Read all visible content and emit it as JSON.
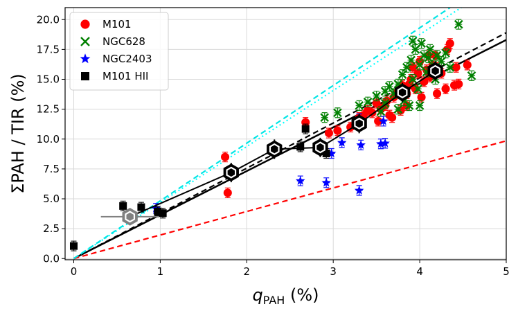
{
  "chart_data": {
    "type": "scatter",
    "xlabel": "q",
    "xlabel_sub": "PAH",
    "xlabel_unit": "(%)",
    "ylabel": "ΣPAH / TIR (%)",
    "xlim": [
      -0.1,
      5.0
    ],
    "ylim": [
      -0.1,
      21.0
    ],
    "xticks": [
      "0",
      "1",
      "2",
      "3",
      "4",
      "5"
    ],
    "yticks": [
      "0.0",
      "2.5",
      "5.0",
      "7.5",
      "10.0",
      "12.5",
      "15.0",
      "17.5",
      "20.0"
    ],
    "grid": true,
    "legend_position": "top-left",
    "colors": {
      "m101": "#ff0000",
      "ngc628": "#008000",
      "ngc2403": "#0000ff",
      "hii": "#000000",
      "cyan": "#00e5e5"
    },
    "series": [
      {
        "name": "M101",
        "marker": "circle",
        "color": "#ff0000",
        "points": [
          [
            1.78,
            5.5
          ],
          [
            1.75,
            8.5
          ],
          [
            2.68,
            11.4
          ],
          [
            2.95,
            10.5
          ],
          [
            3.05,
            10.7
          ],
          [
            3.2,
            11.0
          ],
          [
            3.3,
            11.8
          ],
          [
            3.35,
            12.0
          ],
          [
            3.4,
            12.4
          ],
          [
            3.45,
            12.2
          ],
          [
            3.5,
            13.0
          ],
          [
            3.52,
            11.5
          ],
          [
            3.55,
            12.5
          ],
          [
            3.6,
            12.8
          ],
          [
            3.62,
            13.2
          ],
          [
            3.65,
            12.0
          ],
          [
            3.7,
            13.5
          ],
          [
            3.75,
            14.0
          ],
          [
            3.78,
            12.4
          ],
          [
            3.8,
            14.5
          ],
          [
            3.85,
            13.8
          ],
          [
            3.88,
            14.6
          ],
          [
            3.9,
            15.0
          ],
          [
            3.92,
            16.0
          ],
          [
            3.95,
            14.2
          ],
          [
            3.98,
            15.5
          ],
          [
            4.0,
            16.5
          ],
          [
            4.05,
            14.8
          ],
          [
            4.08,
            15.8
          ],
          [
            4.1,
            17.0
          ],
          [
            4.12,
            15.2
          ],
          [
            4.15,
            16.2
          ],
          [
            4.18,
            17.0
          ],
          [
            4.2,
            16.0
          ],
          [
            4.25,
            15.5
          ],
          [
            4.3,
            14.2
          ],
          [
            4.32,
            17.5
          ],
          [
            4.35,
            18.0
          ],
          [
            4.4,
            14.5
          ],
          [
            4.45,
            14.6
          ],
          [
            4.55,
            16.2
          ],
          [
            4.42,
            16.0
          ],
          [
            3.85,
            12.8
          ],
          [
            4.02,
            13.5
          ],
          [
            4.2,
            13.8
          ],
          [
            3.68,
            11.8
          ]
        ]
      },
      {
        "name": "NGC628",
        "marker": "x",
        "color": "#008000",
        "points": [
          [
            2.9,
            11.8
          ],
          [
            3.05,
            12.2
          ],
          [
            3.3,
            12.8
          ],
          [
            3.4,
            13.1
          ],
          [
            3.5,
            13.6
          ],
          [
            3.6,
            14.0
          ],
          [
            3.65,
            14.4
          ],
          [
            3.7,
            13.8
          ],
          [
            3.75,
            14.6
          ],
          [
            3.8,
            15.4
          ],
          [
            3.82,
            13.2
          ],
          [
            3.85,
            16.0
          ],
          [
            3.88,
            12.8
          ],
          [
            3.9,
            16.6
          ],
          [
            3.92,
            15.0
          ],
          [
            3.95,
            17.5
          ],
          [
            3.98,
            14.2
          ],
          [
            4.0,
            16.2
          ],
          [
            4.02,
            18.0
          ],
          [
            4.05,
            17.0
          ],
          [
            4.08,
            15.6
          ],
          [
            4.1,
            16.8
          ],
          [
            4.12,
            17.5
          ],
          [
            4.15,
            16.2
          ],
          [
            4.18,
            15.0
          ],
          [
            4.2,
            17.0
          ],
          [
            4.25,
            16.5
          ],
          [
            4.3,
            17.2
          ],
          [
            4.35,
            16.0
          ],
          [
            4.45,
            19.6
          ],
          [
            4.6,
            15.3
          ],
          [
            3.92,
            18.2
          ],
          [
            3.6,
            13.0
          ],
          [
            3.75,
            12.5
          ],
          [
            4.0,
            12.8
          ],
          [
            3.55,
            12.3
          ]
        ]
      },
      {
        "name": "NGC2403",
        "marker": "star",
        "color": "#0000ff",
        "points": [
          [
            2.62,
            6.5
          ],
          [
            2.92,
            6.35
          ],
          [
            3.3,
            5.7
          ],
          [
            3.1,
            9.7
          ],
          [
            3.32,
            9.5
          ],
          [
            3.55,
            9.6
          ],
          [
            3.6,
            9.65
          ],
          [
            2.98,
            8.8
          ],
          [
            3.58,
            11.5
          ],
          [
            3.3,
            11.7
          ],
          [
            0.95,
            4.2
          ]
        ]
      },
      {
        "name": "M101 HII",
        "marker": "square",
        "color": "#000000",
        "points": [
          [
            0.0,
            1.05
          ],
          [
            0.57,
            4.4
          ],
          [
            0.78,
            4.3
          ],
          [
            0.97,
            3.95
          ],
          [
            1.03,
            3.8
          ],
          [
            2.62,
            9.35
          ],
          [
            2.68,
            10.85
          ],
          [
            2.92,
            8.8
          ]
        ]
      }
    ],
    "binned_means": [
      [
        0.65,
        3.5
      ],
      [
        1.82,
        7.2
      ],
      [
        2.32,
        9.15
      ],
      [
        2.85,
        9.3
      ],
      [
        3.3,
        11.3
      ],
      [
        3.8,
        13.9
      ],
      [
        4.18,
        15.7
      ]
    ],
    "lines": [
      {
        "style": "solid",
        "color": "#000000",
        "from": [
          0,
          0
        ],
        "to": [
          5,
          18.3
        ]
      },
      {
        "style": "dashed",
        "color": "#000000",
        "from": [
          0,
          0
        ],
        "to": [
          5,
          18.9
        ]
      },
      {
        "style": "dashed",
        "color": "#ff0000",
        "from": [
          0,
          0
        ],
        "to": [
          5,
          9.85
        ]
      },
      {
        "style": "dotted",
        "color": "#00ffff",
        "from": [
          0,
          0
        ],
        "to": [
          4.48,
          21.0
        ]
      },
      {
        "style": "dashed",
        "color": "#00e5e5",
        "from": [
          0,
          0
        ],
        "to": [
          4.35,
          21.0
        ]
      }
    ]
  }
}
